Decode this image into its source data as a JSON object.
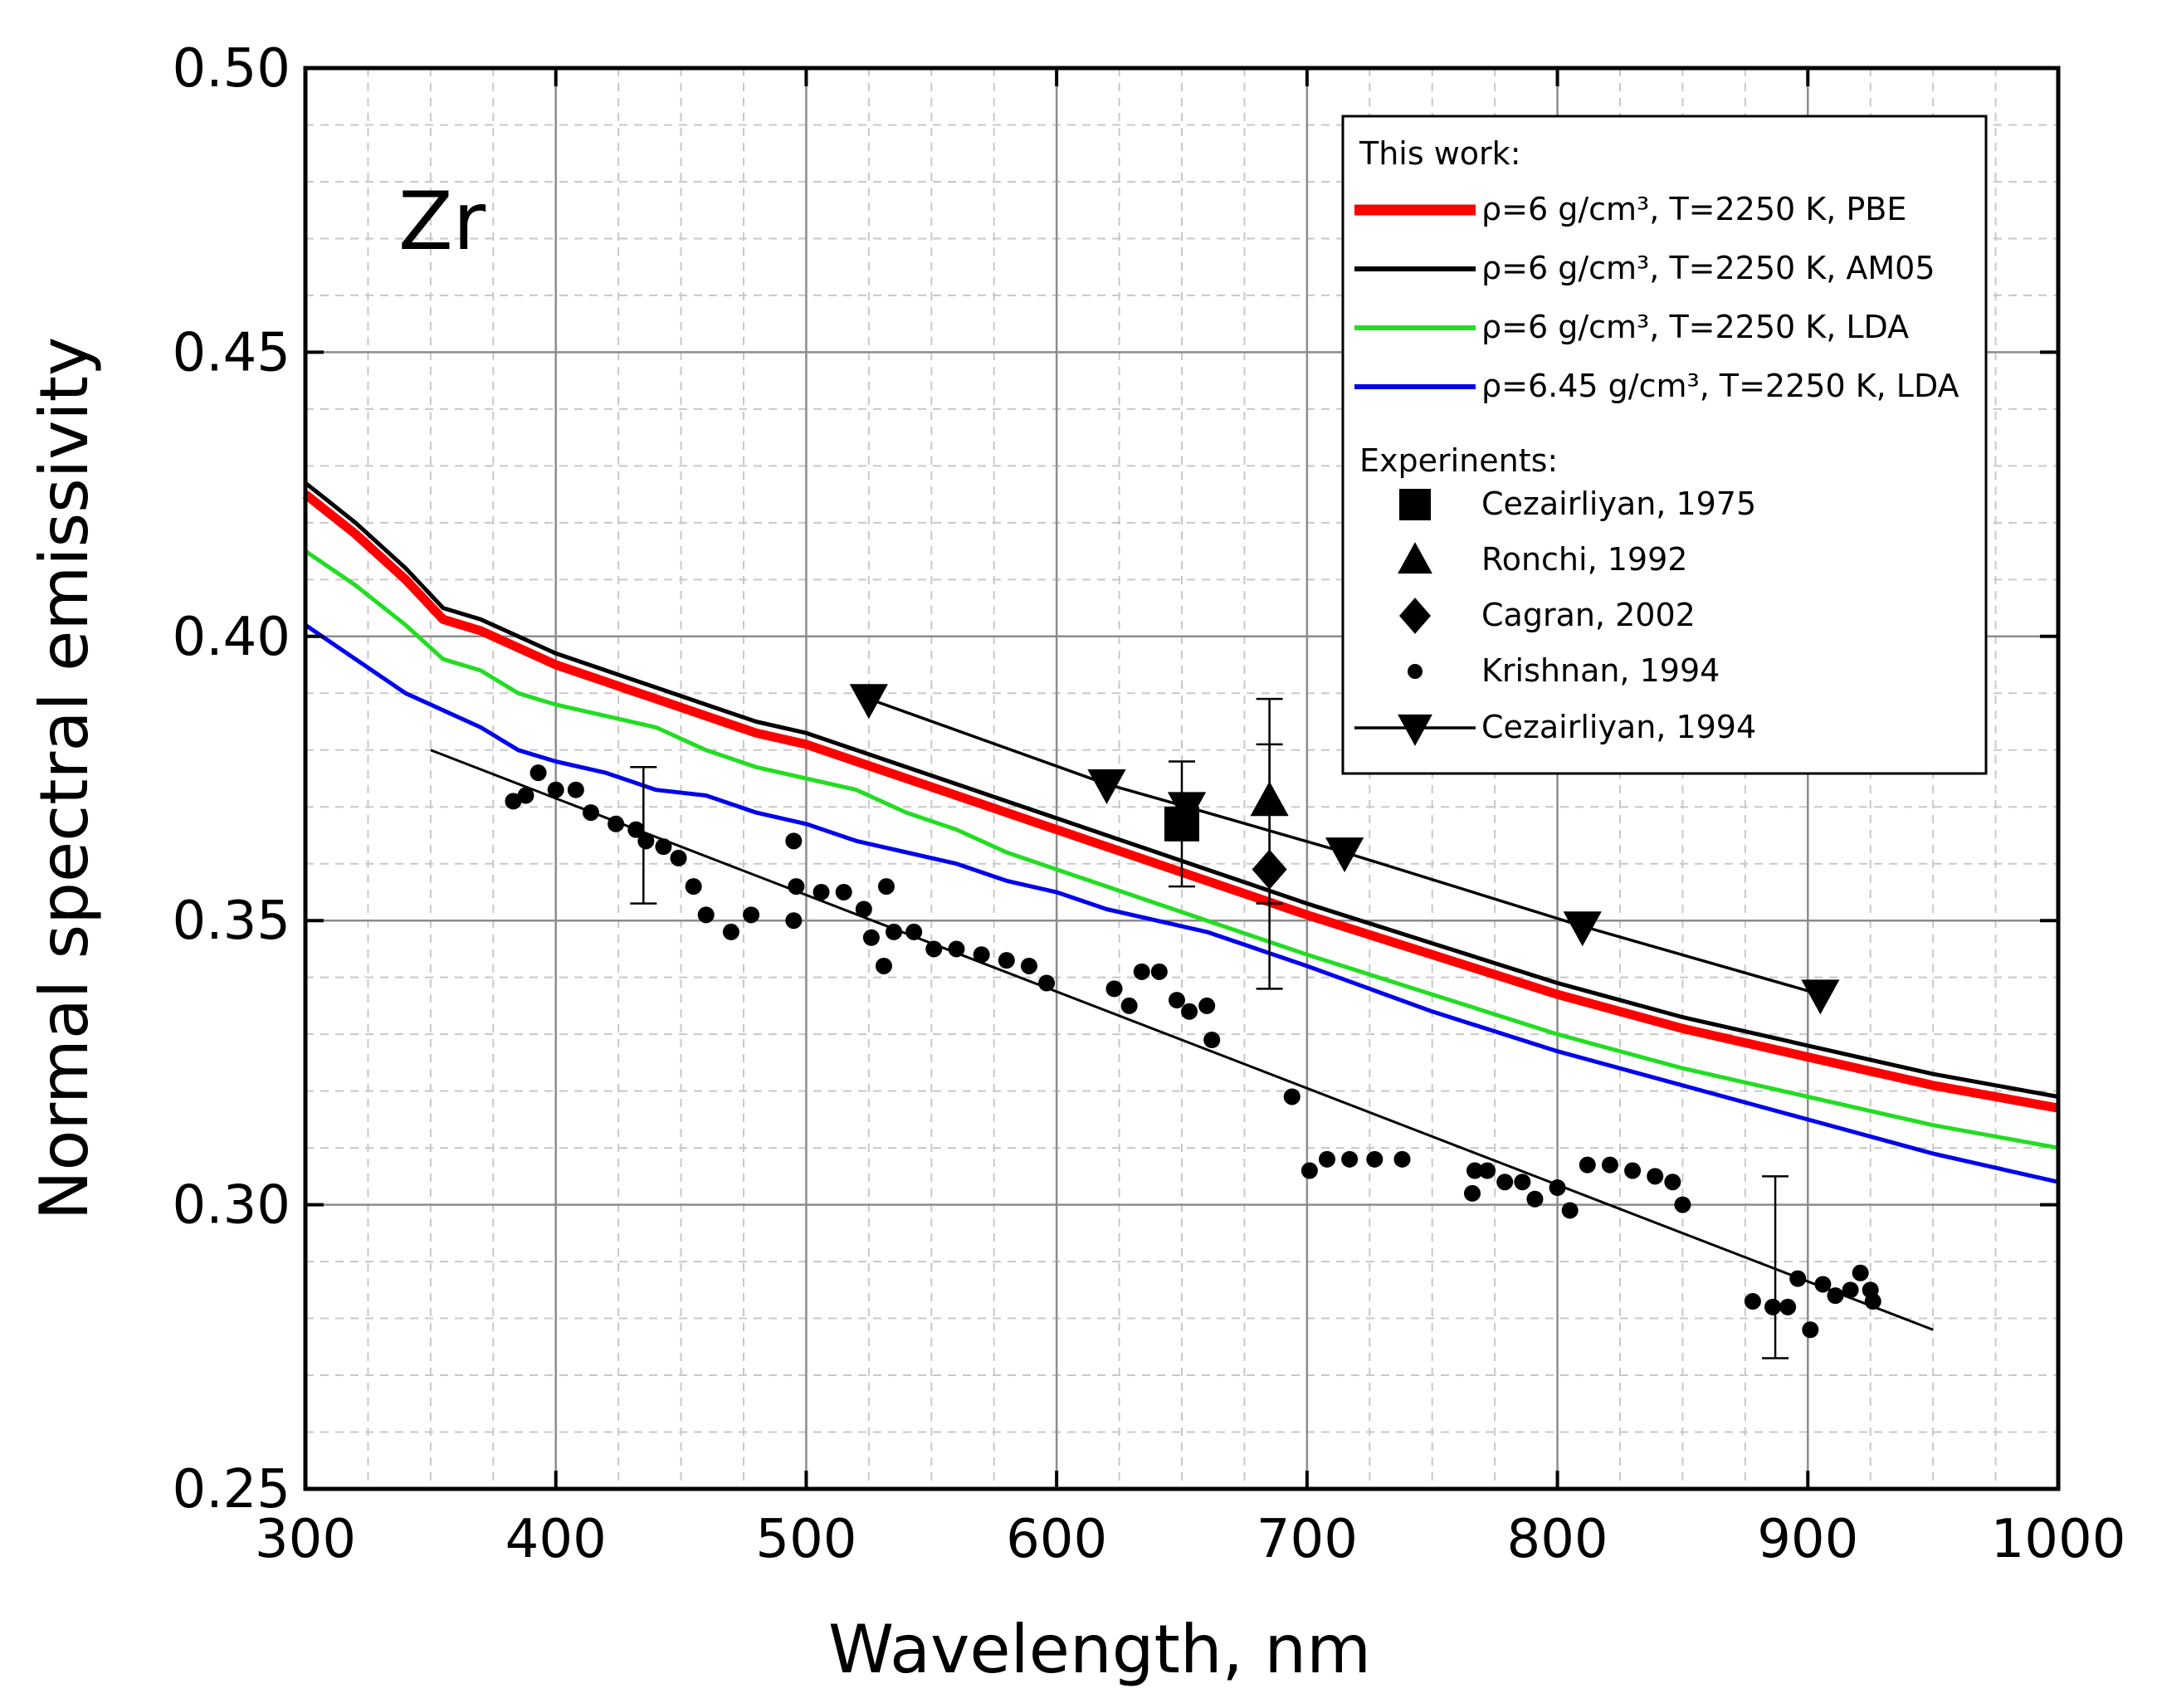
{
  "chart_data": {
    "type": "line",
    "annotation": "Zr",
    "xlabel": "Wavelength, nm",
    "ylabel": "Normal spectral emissivity",
    "xlim": [
      300,
      1000
    ],
    "ylim": [
      0.25,
      0.5
    ],
    "x_ticks": [
      "300",
      "400",
      "500",
      "600",
      "700",
      "800",
      "900",
      "1000"
    ],
    "y_ticks": [
      "0.25",
      "0.30",
      "0.35",
      "0.40",
      "0.45",
      "0.50"
    ],
    "grid": true,
    "legend_position": "top-right",
    "legend": {
      "heading_theory": "This work:",
      "heading_experiment": "Experinents:"
    },
    "series": [
      {
        "name": "ρ=6 g/cm³, T=2250 K, PBE",
        "color": "#ff0000",
        "style": "line-thick",
        "points": [
          [
            300,
            0.425
          ],
          [
            320,
            0.418
          ],
          [
            340,
            0.41
          ],
          [
            355,
            0.403
          ],
          [
            370,
            0.401
          ],
          [
            385,
            0.398
          ],
          [
            400,
            0.395
          ],
          [
            420,
            0.392
          ],
          [
            440,
            0.389
          ],
          [
            460,
            0.386
          ],
          [
            480,
            0.383
          ],
          [
            500,
            0.381
          ],
          [
            520,
            0.378
          ],
          [
            540,
            0.375
          ],
          [
            560,
            0.372
          ],
          [
            580,
            0.369
          ],
          [
            600,
            0.366
          ],
          [
            620,
            0.363
          ],
          [
            640,
            0.36
          ],
          [
            660,
            0.357
          ],
          [
            680,
            0.354
          ],
          [
            700,
            0.351
          ],
          [
            750,
            0.344
          ],
          [
            800,
            0.337
          ],
          [
            850,
            0.331
          ],
          [
            900,
            0.326
          ],
          [
            950,
            0.321
          ],
          [
            1000,
            0.317
          ]
        ]
      },
      {
        "name": "ρ=6 g/cm³, T=2250 K, AM05",
        "color": "#000000",
        "style": "line",
        "points": [
          [
            300,
            0.427
          ],
          [
            320,
            0.42
          ],
          [
            340,
            0.412
          ],
          [
            355,
            0.405
          ],
          [
            370,
            0.403
          ],
          [
            385,
            0.4
          ],
          [
            400,
            0.397
          ],
          [
            420,
            0.394
          ],
          [
            440,
            0.391
          ],
          [
            460,
            0.388
          ],
          [
            480,
            0.385
          ],
          [
            500,
            0.383
          ],
          [
            520,
            0.38
          ],
          [
            540,
            0.377
          ],
          [
            560,
            0.374
          ],
          [
            580,
            0.371
          ],
          [
            600,
            0.368
          ],
          [
            620,
            0.365
          ],
          [
            640,
            0.362
          ],
          [
            660,
            0.359
          ],
          [
            680,
            0.356
          ],
          [
            700,
            0.353
          ],
          [
            750,
            0.346
          ],
          [
            800,
            0.339
          ],
          [
            850,
            0.333
          ],
          [
            900,
            0.328
          ],
          [
            950,
            0.323
          ],
          [
            1000,
            0.319
          ]
        ]
      },
      {
        "name": "ρ=6 g/cm³, T=2250 K, LDA",
        "color": "#22dd22",
        "style": "line",
        "points": [
          [
            300,
            0.415
          ],
          [
            320,
            0.409
          ],
          [
            340,
            0.402
          ],
          [
            355,
            0.396
          ],
          [
            370,
            0.394
          ],
          [
            385,
            0.39
          ],
          [
            400,
            0.388
          ],
          [
            420,
            0.386
          ],
          [
            440,
            0.384
          ],
          [
            460,
            0.38
          ],
          [
            480,
            0.377
          ],
          [
            500,
            0.375
          ],
          [
            520,
            0.373
          ],
          [
            540,
            0.369
          ],
          [
            560,
            0.366
          ],
          [
            580,
            0.362
          ],
          [
            600,
            0.359
          ],
          [
            620,
            0.356
          ],
          [
            640,
            0.353
          ],
          [
            660,
            0.35
          ],
          [
            680,
            0.347
          ],
          [
            700,
            0.344
          ],
          [
            750,
            0.337
          ],
          [
            800,
            0.33
          ],
          [
            850,
            0.324
          ],
          [
            900,
            0.319
          ],
          [
            950,
            0.314
          ],
          [
            1000,
            0.31
          ]
        ]
      },
      {
        "name": "ρ=6.45 g/cm³, T=2250 K, LDA",
        "color": "#0000ee",
        "style": "line",
        "points": [
          [
            300,
            0.402
          ],
          [
            320,
            0.396
          ],
          [
            340,
            0.39
          ],
          [
            355,
            0.387
          ],
          [
            370,
            0.384
          ],
          [
            385,
            0.38
          ],
          [
            400,
            0.378
          ],
          [
            420,
            0.376
          ],
          [
            440,
            0.373
          ],
          [
            460,
            0.372
          ],
          [
            480,
            0.369
          ],
          [
            500,
            0.367
          ],
          [
            520,
            0.364
          ],
          [
            540,
            0.362
          ],
          [
            560,
            0.36
          ],
          [
            580,
            0.357
          ],
          [
            600,
            0.355
          ],
          [
            620,
            0.352
          ],
          [
            640,
            0.35
          ],
          [
            660,
            0.348
          ],
          [
            680,
            0.345
          ],
          [
            700,
            0.342
          ],
          [
            750,
            0.334
          ],
          [
            800,
            0.327
          ],
          [
            850,
            0.321
          ],
          [
            900,
            0.315
          ],
          [
            950,
            0.309
          ],
          [
            1000,
            0.304
          ]
        ]
      },
      {
        "name": "Cezairliyan, 1975",
        "color": "#000000",
        "style": "marker",
        "marker": "square",
        "points": [
          [
            650,
            0.367
          ]
        ],
        "error_bars": [
          [
            650,
            0.356,
            0.378
          ]
        ]
      },
      {
        "name": "Ronchi, 1992",
        "color": "#000000",
        "style": "marker",
        "marker": "triangle-up",
        "points": [
          [
            685,
            0.371
          ]
        ],
        "error_bars": [
          [
            685,
            0.353,
            0.389
          ]
        ]
      },
      {
        "name": "Cagran, 2002",
        "color": "#000000",
        "style": "marker",
        "marker": "diamond",
        "points": [
          [
            685,
            0.359
          ]
        ],
        "error_bars": [
          [
            685,
            0.338,
            0.381
          ]
        ]
      },
      {
        "name": "Krishnan, 1994",
        "color": "#000000",
        "style": "marker",
        "marker": "dot",
        "points": [
          [
            383,
            0.371
          ],
          [
            388,
            0.372
          ],
          [
            393,
            0.376
          ],
          [
            400,
            0.373
          ],
          [
            408,
            0.373
          ],
          [
            414,
            0.369
          ],
          [
            424,
            0.367
          ],
          [
            432,
            0.366
          ],
          [
            436,
            0.364
          ],
          [
            443,
            0.363
          ],
          [
            449,
            0.361
          ],
          [
            455,
            0.356
          ],
          [
            460,
            0.351
          ],
          [
            470,
            0.348
          ],
          [
            478,
            0.351
          ],
          [
            495,
            0.364
          ],
          [
            496,
            0.356
          ],
          [
            495,
            0.35
          ],
          [
            506,
            0.355
          ],
          [
            515,
            0.355
          ],
          [
            523,
            0.352
          ],
          [
            526,
            0.347
          ],
          [
            532,
            0.356
          ],
          [
            531,
            0.342
          ],
          [
            535,
            0.348
          ],
          [
            543,
            0.348
          ],
          [
            551,
            0.345
          ],
          [
            560,
            0.345
          ],
          [
            570,
            0.344
          ],
          [
            580,
            0.343
          ],
          [
            589,
            0.342
          ],
          [
            596,
            0.339
          ],
          [
            623,
            0.338
          ],
          [
            629,
            0.335
          ],
          [
            634,
            0.341
          ],
          [
            641,
            0.341
          ],
          [
            648,
            0.336
          ],
          [
            653,
            0.334
          ],
          [
            660,
            0.335
          ],
          [
            662,
            0.329
          ],
          [
            694,
            0.319
          ],
          [
            701,
            0.306
          ],
          [
            708,
            0.308
          ],
          [
            717,
            0.308
          ],
          [
            727,
            0.308
          ],
          [
            738,
            0.308
          ],
          [
            766,
            0.302
          ],
          [
            767,
            0.306
          ],
          [
            772,
            0.306
          ],
          [
            779,
            0.304
          ],
          [
            786,
            0.304
          ],
          [
            791,
            0.301
          ],
          [
            800,
            0.303
          ],
          [
            805,
            0.299
          ],
          [
            812,
            0.307
          ],
          [
            821,
            0.307
          ],
          [
            830,
            0.306
          ],
          [
            839,
            0.305
          ],
          [
            846,
            0.304
          ],
          [
            850,
            0.3
          ],
          [
            878,
            0.283
          ],
          [
            886,
            0.282
          ],
          [
            892,
            0.282
          ],
          [
            896,
            0.287
          ],
          [
            901,
            0.278
          ],
          [
            906,
            0.286
          ],
          [
            911,
            0.284
          ],
          [
            917,
            0.285
          ],
          [
            921,
            0.288
          ],
          [
            925,
            0.285
          ],
          [
            926,
            0.283
          ]
        ],
        "error_bars": [
          [
            435,
            0.353,
            0.377
          ],
          [
            887,
            0.273,
            0.305
          ]
        ],
        "fit_line": [
          [
            350,
            0.38
          ],
          [
            950,
            0.278
          ]
        ]
      },
      {
        "name": "Cezairliyan, 1994",
        "color": "#000000",
        "style": "line-marker",
        "marker": "triangle-down",
        "points": [
          [
            525,
            0.389
          ],
          [
            620,
            0.374
          ],
          [
            652,
            0.37
          ],
          [
            715,
            0.362
          ],
          [
            810,
            0.349
          ],
          [
            905,
            0.337
          ]
        ]
      }
    ]
  }
}
